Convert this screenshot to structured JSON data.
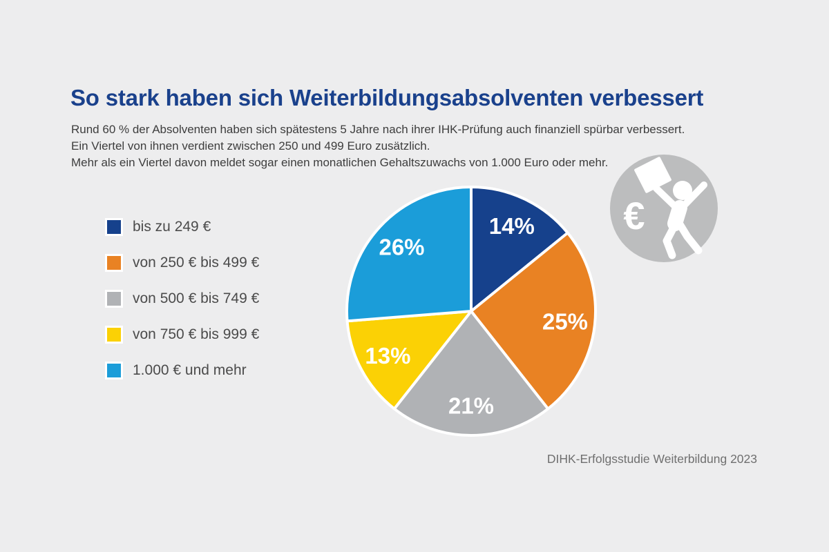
{
  "page": {
    "background_color": "#ededee"
  },
  "header": {
    "title": "So stark haben sich Weiterbildungsabsolventen verbessert",
    "title_color": "#1a418c",
    "subtitle_lines": [
      "Rund 60 % der Absolventen haben sich spätestens 5 Jahre nach ihrer IHK-Prüfung auch finanziell spürbar verbessert.",
      "Ein Viertel von ihnen verdient zwischen 250 und 499 Euro zusätzlich.",
      "Mehr als ein Viertel davon meldet sogar einen monatlichen Gehaltszuwachs von 1.000 Euro oder mehr."
    ]
  },
  "legend": {
    "items": [
      {
        "label": "bis zu 249 €",
        "color": "#16418c"
      },
      {
        "label": "von 250 € bis 499 €",
        "color": "#e98223"
      },
      {
        "label": "von 500 € bis 749 €",
        "color": "#b0b2b5"
      },
      {
        "label": "von 750 € bis 999 €",
        "color": "#fbd105"
      },
      {
        "label": "1.000 € und mehr",
        "color": "#1b9dd9"
      }
    ]
  },
  "chart_data": {
    "type": "pie",
    "title": "So stark haben sich Weiterbildungsabsolventen verbessert",
    "categories": [
      "bis zu 249 €",
      "von 250 € bis 499 €",
      "von 500 € bis 749 €",
      "von 750 € bis 999 €",
      "1.000 € und mehr"
    ],
    "values": [
      14,
      25,
      21,
      13,
      26
    ],
    "labels": [
      "14%",
      "25%",
      "21%",
      "13%",
      "26%"
    ],
    "colors": [
      "#16418c",
      "#e98223",
      "#b0b2b5",
      "#fbd105",
      "#1b9dd9"
    ],
    "start_angle_deg": 0,
    "direction": "clockwise",
    "slice_gap_color": "#ffffff",
    "label_color": "#ffffff",
    "legend_position": "left",
    "grid": false
  },
  "icon": {
    "name": "jumping-person-with-certificate-and-euro",
    "circle_color": "#bcbdbe",
    "figure_color": "#ffffff",
    "euro_symbol": "€"
  },
  "source": {
    "text": "DIHK-Erfolgsstudie Weiterbildung 2023"
  }
}
